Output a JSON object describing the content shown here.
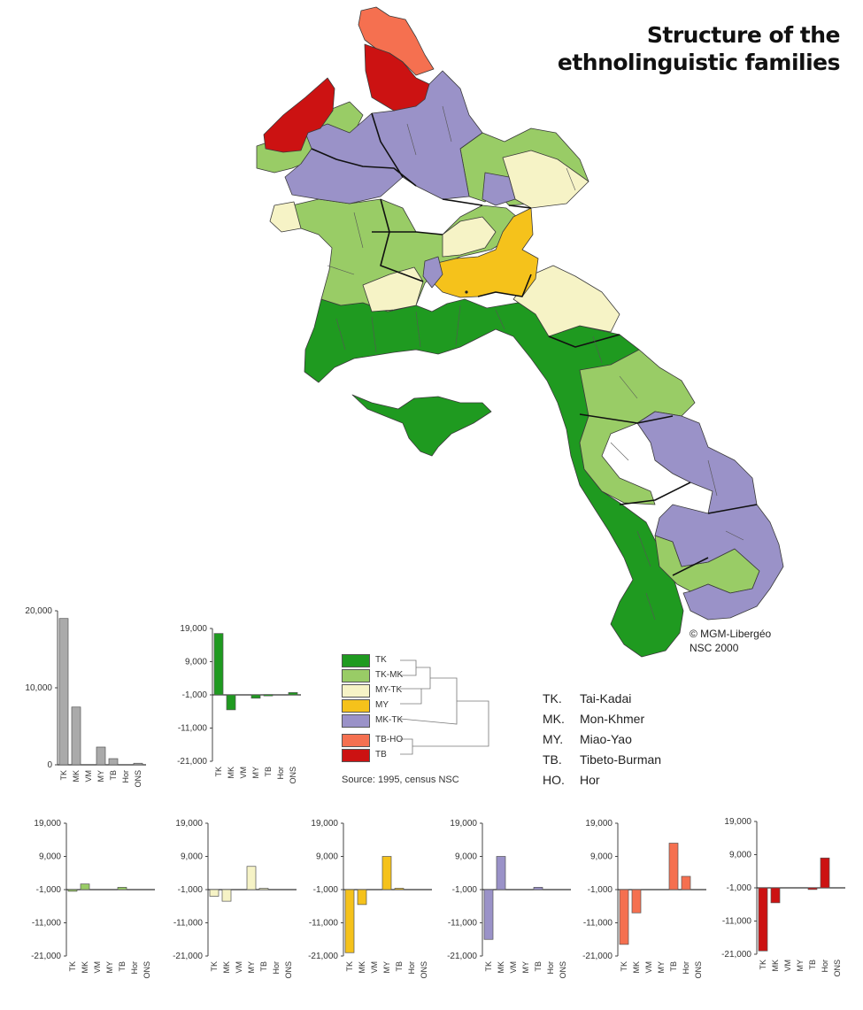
{
  "title_line1": "Structure of the",
  "title_line2": "ethnolinguistic families",
  "credit_line1": "© MGM-Libergéo",
  "credit_line2": "NSC 2000",
  "source": "Source: 1995, census NSC",
  "colors": {
    "TK": "#1f9a20",
    "TK-MK": "#99cc66",
    "MY-TK": "#f6f3c6",
    "MY": "#f5c21b",
    "MK-TK": "#9a92c8",
    "TB-HO": "#f57050",
    "TB": "#cc1212",
    "total": "#aaaaaa",
    "border": "#222222"
  },
  "legend": [
    {
      "code": "TK",
      "color": "#1f9a20"
    },
    {
      "code": "TK-MK",
      "color": "#99cc66"
    },
    {
      "code": "MY-TK",
      "color": "#f6f3c6"
    },
    {
      "code": "MY",
      "color": "#f5c21b"
    },
    {
      "code": "MK-TK",
      "color": "#9a92c8"
    },
    {
      "code": "TB-HO",
      "color": "#f57050"
    },
    {
      "code": "TB",
      "color": "#cc1212"
    }
  ],
  "abbreviations": [
    {
      "code": "TK.",
      "name": "Tai-Kadai"
    },
    {
      "code": "MK.",
      "name": "Mon-Khmer"
    },
    {
      "code": "MY.",
      "name": "Miao-Yao"
    },
    {
      "code": "TB.",
      "name": "Tibeto-Burman"
    },
    {
      "code": "HO.",
      "name": "Hor"
    }
  ],
  "chart_data": [
    {
      "type": "bar",
      "group": "total",
      "color": "#aaaaaa",
      "categories": [
        "TK",
        "MK",
        "VM",
        "MY",
        "TB",
        "Hor",
        "ONS"
      ],
      "values": [
        19000,
        7500,
        0,
        2300,
        800,
        0,
        200
      ],
      "ylim": [
        0,
        20000
      ],
      "yticks": [
        0,
        10000,
        20000
      ],
      "ytick_labels": [
        "0",
        "10,000",
        "20,000"
      ]
    },
    {
      "type": "bar",
      "group": "TK",
      "color": "#1f9a20",
      "categories": [
        "TK",
        "MK",
        "VM",
        "MY",
        "TB",
        "Hor",
        "ONS"
      ],
      "values": [
        17500,
        -5500,
        0,
        -2000,
        -900,
        0,
        -300
      ],
      "ylim": [
        -21000,
        19000
      ],
      "yticks": [
        19000,
        9000,
        -1000,
        -11000,
        -21000
      ],
      "ytick_labels": [
        "19,000",
        "9,000",
        "-1,000",
        "-11,000",
        "-21,000"
      ]
    },
    {
      "type": "bar",
      "group": "TK-MK",
      "color": "#99cc66",
      "categories": [
        "TK",
        "MK",
        "VM",
        "MY",
        "TB",
        "Hor",
        "ONS"
      ],
      "values": [
        -1500,
        700,
        0,
        0,
        -300,
        0,
        0
      ],
      "ylim": [
        -21000,
        19000
      ],
      "yticks": [
        19000,
        9000,
        -1000,
        -11000,
        -21000
      ],
      "ytick_labels": [
        "19,000",
        "9,000",
        "-1,000",
        "-11,000",
        "-21,000"
      ]
    },
    {
      "type": "bar",
      "group": "MY-TK",
      "color": "#f6f3c6",
      "categories": [
        "TK",
        "MK",
        "VM",
        "MY",
        "TB",
        "Hor",
        "ONS"
      ],
      "values": [
        -3000,
        -4500,
        0,
        6000,
        -600,
        0,
        0
      ],
      "ylim": [
        -21000,
        19000
      ],
      "yticks": [
        19000,
        9000,
        -1000,
        -11000,
        -21000
      ],
      "ytick_labels": [
        "19,000",
        "9,000",
        "-1,000",
        "-11,000",
        "-21,000"
      ]
    },
    {
      "type": "bar",
      "group": "MY",
      "color": "#f5c21b",
      "categories": [
        "TK",
        "MK",
        "VM",
        "MY",
        "TB",
        "Hor",
        "ONS"
      ],
      "values": [
        -20000,
        -5500,
        0,
        9000,
        -600,
        0,
        0
      ],
      "ylim": [
        -21000,
        19000
      ],
      "yticks": [
        19000,
        9000,
        -1000,
        -11000,
        -21000
      ],
      "ytick_labels": [
        "19,000",
        "9,000",
        "-1,000",
        "-11,000",
        "-21,000"
      ]
    },
    {
      "type": "bar",
      "group": "MK-TK",
      "color": "#9a92c8",
      "categories": [
        "TK",
        "MK",
        "VM",
        "MY",
        "TB",
        "Hor",
        "ONS"
      ],
      "values": [
        -16000,
        9000,
        0,
        0,
        -300,
        0,
        0
      ],
      "ylim": [
        -21000,
        19000
      ],
      "yticks": [
        19000,
        9000,
        -1000,
        -11000,
        -21000
      ],
      "ytick_labels": [
        "19,000",
        "9,000",
        "-1,000",
        "-11,000",
        "-21,000"
      ]
    },
    {
      "type": "bar",
      "group": "TB-HO",
      "color": "#f57050",
      "categories": [
        "TK",
        "MK",
        "VM",
        "MY",
        "TB",
        "Hor",
        "ONS"
      ],
      "values": [
        -17500,
        -8000,
        0,
        0,
        13000,
        3000,
        0
      ],
      "ylim": [
        -21000,
        19000
      ],
      "yticks": [
        19000,
        9000,
        -1000,
        -11000,
        -21000
      ],
      "ytick_labels": [
        "19,000",
        "9,000",
        "-1,000",
        "-11,000",
        "-21,000"
      ]
    },
    {
      "type": "bar",
      "group": "TB",
      "color": "#cc1212",
      "categories": [
        "TK",
        "MK",
        "VM",
        "MY",
        "TB",
        "Hor",
        "ONS"
      ],
      "values": [
        -20000,
        -5500,
        0,
        0,
        -1500,
        8000,
        0
      ],
      "ylim": [
        -21000,
        19000
      ],
      "yticks": [
        19000,
        9000,
        -1000,
        -11000,
        -21000
      ],
      "ytick_labels": [
        "19,000",
        "9,000",
        "-1,000",
        "-11,000",
        "-21,000"
      ]
    }
  ]
}
